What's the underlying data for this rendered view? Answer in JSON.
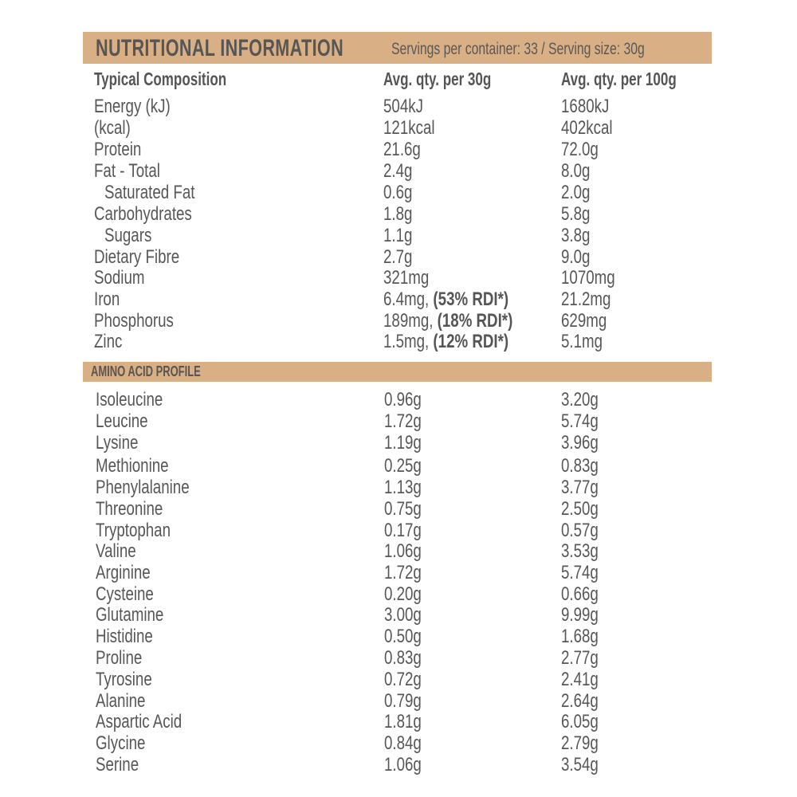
{
  "header": {
    "title": "NUTRITIONAL INFORMATION",
    "servings": "Servings per container: 33 / Serving size: 30g"
  },
  "columns": {
    "col1": "Typical Composition",
    "col2": "Avg. qty. per 30g",
    "col3": "Avg. qty. per 100g"
  },
  "nutrients": [
    {
      "name": "Energy (kJ)",
      "per30": "504kJ",
      "rdi": "",
      "per100": "1680kJ",
      "indent": false
    },
    {
      "name": "(kcal)",
      "per30": "121kcal",
      "rdi": "",
      "per100": "402kcal",
      "indent": false
    },
    {
      "name": "Protein",
      "per30": "21.6g",
      "rdi": "",
      "per100": "72.0g",
      "indent": false
    },
    {
      "name": "Fat - Total",
      "per30": "2.4g",
      "rdi": "",
      "per100": "8.0g",
      "indent": false
    },
    {
      "name": "Saturated Fat",
      "per30": "0.6g",
      "rdi": "",
      "per100": "2.0g",
      "indent": true
    },
    {
      "name": "Carbohydrates",
      "per30": "1.8g",
      "rdi": "",
      "per100": "5.8g",
      "indent": false
    },
    {
      "name": "Sugars",
      "per30": "1.1g",
      "rdi": "",
      "per100": "3.8g",
      "indent": true
    },
    {
      "name": "Dietary Fibre",
      "per30": "2.7g",
      "rdi": "",
      "per100": "9.0g",
      "indent": false
    },
    {
      "name": "Sodium",
      "per30": "321mg",
      "rdi": "",
      "per100": "1070mg",
      "indent": false
    },
    {
      "name": "Iron",
      "per30": "6.4mg, ",
      "rdi": "(53% RDI*)",
      "per100": "21.2mg",
      "indent": false
    },
    {
      "name": "Phosphorus",
      "per30": "189mg, ",
      "rdi": "(18% RDI*)",
      "per100": "629mg",
      "indent": false
    },
    {
      "name": "Zinc",
      "per30": "1.5mg, ",
      "rdi": "(12% RDI*)",
      "per100": "5.1mg",
      "indent": false
    }
  ],
  "amino": {
    "title": "AMINO ACID PROFILE",
    "rows": [
      {
        "name": "Isoleucine",
        "per30": "0.96g",
        "per100": "3.20g"
      },
      {
        "name": "Leucine",
        "per30": "1.72g",
        "per100": "5.74g"
      },
      {
        "name": "Lysine",
        "per30": "1.19g",
        "per100": "3.96g"
      },
      {
        "name": "Methionine",
        "per30": "0.25g",
        "per100": "0.83g"
      },
      {
        "name": "Phenylalanine",
        "per30": "1.13g",
        "per100": "3.77g"
      },
      {
        "name": "Threonine",
        "per30": "0.75g",
        "per100": "2.50g"
      },
      {
        "name": "Tryptophan",
        "per30": "0.17g",
        "per100": "0.57g"
      },
      {
        "name": "Valine",
        "per30": "1.06g",
        "per100": "3.53g"
      },
      {
        "name": "Arginine",
        "per30": "1.72g",
        "per100": "5.74g"
      },
      {
        "name": "Cysteine",
        "per30": "0.20g",
        "per100": "0.66g"
      },
      {
        "name": "Glutamine",
        "per30": "3.00g",
        "per100": "9.99g"
      },
      {
        "name": "Histidine",
        "per30": "0.50g",
        "per100": "1.68g"
      },
      {
        "name": "Proline",
        "per30": "0.83g",
        "per100": "2.77g"
      },
      {
        "name": "Tyrosine",
        "per30": "0.72g",
        "per100": "2.41g"
      },
      {
        "name": "Alanine",
        "per30": "0.79g",
        "per100": "2.64g"
      },
      {
        "name": "Aspartic Acid",
        "per30": "1.81g",
        "per100": "6.05g"
      },
      {
        "name": "Glycine",
        "per30": "0.84g",
        "per100": "2.79g"
      },
      {
        "name": "Serine",
        "per30": "1.06g",
        "per100": "3.54g"
      }
    ]
  },
  "colors": {
    "band": "#d9af86",
    "text": "#555555",
    "background": "#ffffff"
  }
}
